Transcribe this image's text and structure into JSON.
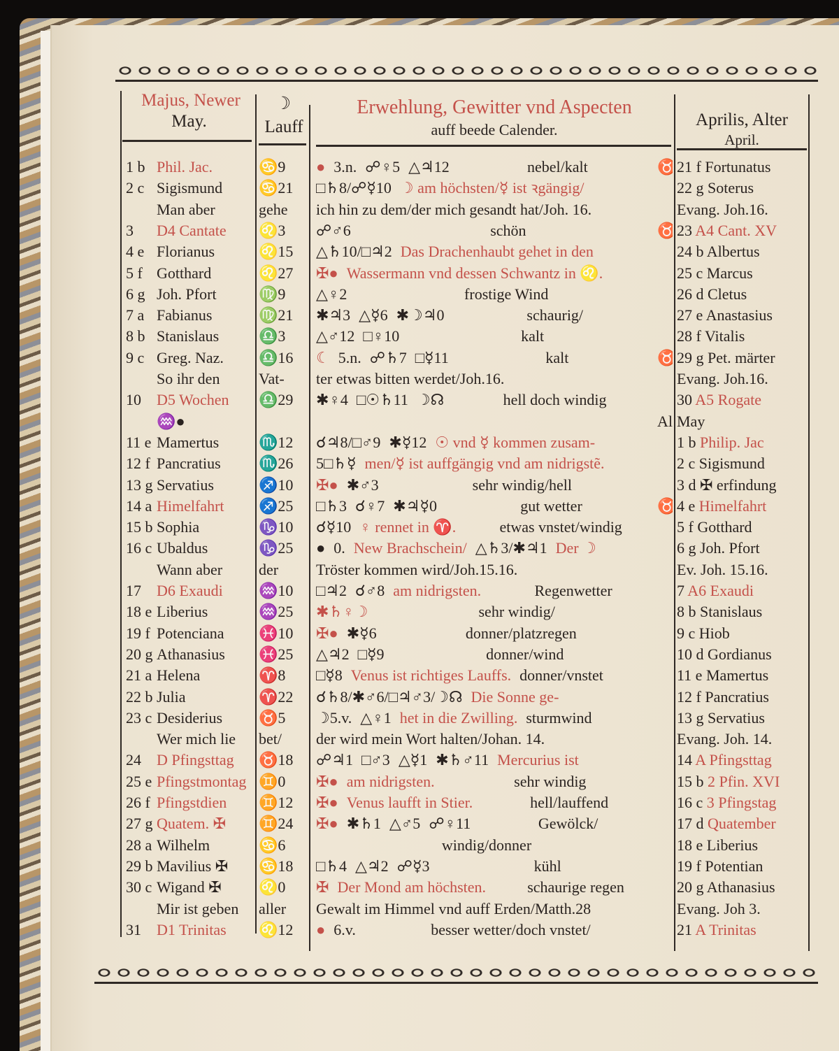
{
  "colors": {
    "red": "#c4514a",
    "ink": "#2a2320",
    "paper": "#efe6d5"
  },
  "header": {
    "left_title": "Majus, Newer",
    "left_sub": "May.",
    "lauf_symbol": "☽",
    "lauf_title": "Lauff",
    "mid_title": "Erwehlung, Gewitter vnd Aspecten",
    "mid_sub": "auff beede Calender.",
    "right_title": "Aprilis, Alter",
    "right_sub": "April."
  },
  "rows": [
    {
      "l": [
        "1 b",
        "Phil. Jac.",
        1
      ],
      "f": "♋9",
      "m": [
        [
          [
            "●",
            1
          ],
          [
            "3.n.",
            0
          ],
          [
            "☍♀5",
            0
          ],
          [
            "△♃12",
            0
          ]
        ],
        "nebel/kalt",
        "♉"
      ],
      "r": [
        "21 f",
        "Fortunatus",
        0
      ]
    },
    {
      "l": [
        "2 c",
        "Sigismund",
        0
      ],
      "f": "♋21",
      "m": [
        [
          [
            "□♄8/☍☿10",
            0
          ],
          [
            "☽ am höchsten/☿ ist ꝛgängig/",
            1
          ]
        ],
        "",
        ""
      ],
      "r": [
        "22 g",
        "Soterus",
        0
      ]
    },
    {
      "l": [
        "",
        "Man aber",
        0
      ],
      "f": "gehe",
      "m": [
        [
          [
            "ich hin zu dem/der mich gesandt hat/Joh. 16.",
            0
          ]
        ],
        "",
        ""
      ],
      "r": [
        "",
        "Evang. Joh.16.",
        0
      ]
    },
    {
      "l": [
        "3",
        "D4 Cantate",
        1
      ],
      "f": "♌3",
      "m": [
        [
          [
            "☍♂6",
            0
          ]
        ],
        "schön",
        "♉"
      ],
      "r": [
        "23",
        "A4 Cant. XV",
        1
      ]
    },
    {
      "l": [
        "4 e",
        "Florianus",
        0
      ],
      "f": "♌15",
      "m": [
        [
          [
            "△♄10/□♃2",
            0
          ],
          [
            "Das Drachenhaubt gehet in den",
            1
          ]
        ],
        "",
        ""
      ],
      "r": [
        "24 b",
        "Albertus",
        0
      ]
    },
    {
      "l": [
        "5 f",
        "Gotthard",
        0
      ],
      "f": "♌27",
      "m": [
        [
          [
            "✠●",
            1
          ],
          [
            "Wassermann vnd dessen Schwantz in ♌.",
            1
          ]
        ],
        "",
        ""
      ],
      "r": [
        "25 c",
        "Marcus",
        0
      ]
    },
    {
      "l": [
        "6 g",
        "Joh. Pfort",
        0
      ],
      "f": "♍9",
      "m": [
        [
          [
            "△♀2",
            0
          ]
        ],
        "frostige Wind",
        ""
      ],
      "r": [
        "26 d",
        "Cletus",
        0
      ]
    },
    {
      "l": [
        "7 a",
        "Fabianus",
        0
      ],
      "f": "♍21",
      "m": [
        [
          [
            "✱♃3",
            0
          ],
          [
            "△☿6",
            0
          ],
          [
            "✱☽♃0",
            0
          ]
        ],
        "schaurig/",
        ""
      ],
      "r": [
        "27 e",
        "Anastasius",
        0
      ]
    },
    {
      "l": [
        "8 b",
        "Stanislaus",
        0
      ],
      "f": "♎3",
      "m": [
        [
          [
            "△♂12",
            0
          ],
          [
            "□♀10",
            0
          ]
        ],
        "kalt",
        ""
      ],
      "r": [
        "28 f",
        "Vitalis",
        0
      ]
    },
    {
      "l": [
        "9 c",
        "Greg. Naz.",
        0
      ],
      "f": "♎16",
      "m": [
        [
          [
            "☾",
            1
          ],
          [
            "5.n.",
            0
          ],
          [
            "☍♄7",
            0
          ],
          [
            "□☿11",
            0
          ]
        ],
        "kalt",
        "♉"
      ],
      "r": [
        "29 g",
        "Pet. märter",
        0
      ]
    },
    {
      "l": [
        "",
        "So ihr den",
        0
      ],
      "f": "Vat-",
      "m": [
        [
          [
            "ter etwas bitten werdet/Joh.16.",
            0
          ]
        ],
        "",
        ""
      ],
      "r": [
        "",
        "Evang. Joh.16.",
        0
      ]
    },
    {
      "l": [
        "10",
        "D5 Wochen",
        1
      ],
      "f": "♎29",
      "m": [
        [
          [
            "✱♀4",
            0
          ],
          [
            "□☉♄11",
            0
          ],
          [
            "☽☊",
            0
          ]
        ],
        "hell doch windig",
        ""
      ],
      "r": [
        "30",
        "A5 Rogate",
        1
      ]
    },
    {
      "l": [
        "",
        "♒●",
        0
      ],
      "f": "",
      "m": [
        [],
        "",
        "Alter"
      ],
      "r": [
        "",
        "May",
        0
      ]
    },
    {
      "l": [
        "11 e",
        "Mamertus",
        0
      ],
      "f": "♏12",
      "m": [
        [
          [
            "☌♃8/□♂9",
            0
          ],
          [
            "✱☿12",
            0
          ],
          [
            "☉ vnd ☿ kommen zusam-",
            1
          ]
        ],
        "",
        ""
      ],
      "r": [
        "1 b",
        "Philip. Jac",
        1
      ]
    },
    {
      "l": [
        "12 f",
        "Pancratius",
        0
      ],
      "f": "♏26",
      "m": [
        [
          [
            "5□♄☿",
            0
          ],
          [
            "men/☿ ist auffgängig vnd am nidrigstẽ.",
            1
          ]
        ],
        "",
        ""
      ],
      "r": [
        "2 c",
        "Sigismund",
        0
      ]
    },
    {
      "l": [
        "13 g",
        "Servatius",
        0
      ],
      "f": "♐10",
      "m": [
        [
          [
            "✠●",
            1
          ],
          [
            "✱♂3",
            0
          ]
        ],
        "sehr windig/hell",
        ""
      ],
      "r": [
        "3 d",
        "✠ erfindung",
        0
      ]
    },
    {
      "l": [
        "14 a",
        "Himelfahrt",
        1
      ],
      "f": "♐25",
      "m": [
        [
          [
            "□♄3",
            0
          ],
          [
            "☌♀7",
            0
          ],
          [
            "✱♃☿0",
            0
          ]
        ],
        "gut wetter",
        "♉"
      ],
      "r": [
        "4 e",
        "Himelfahrt",
        1
      ]
    },
    {
      "l": [
        "15 b",
        "Sophia",
        0
      ],
      "f": "♑10",
      "m": [
        [
          [
            "☌☿10",
            0
          ],
          [
            "♀ rennet in ♈.",
            1
          ]
        ],
        "etwas vnstet/windig",
        ""
      ],
      "r": [
        "5 f",
        "Gotthard",
        0
      ]
    },
    {
      "l": [
        "16 c",
        "Ubaldus",
        0
      ],
      "f": "♑25",
      "m": [
        [
          [
            "●",
            0
          ],
          [
            "0.",
            0
          ],
          [
            "New Brachschein/",
            1
          ],
          [
            "△♄3/✱♃1",
            0
          ],
          [
            "Der ☽",
            1
          ]
        ],
        "",
        ""
      ],
      "r": [
        "6 g",
        "Joh. Pfort",
        0
      ]
    },
    {
      "l": [
        "",
        "Wann aber",
        0
      ],
      "f": "der",
      "m": [
        [
          [
            "Tröster kommen wird/Joh.15.16.",
            0
          ]
        ],
        "",
        ""
      ],
      "r": [
        "",
        "Ev. Joh. 15.16.",
        0
      ]
    },
    {
      "l": [
        "17",
        "D6 Exaudi",
        1
      ],
      "f": "♒10",
      "m": [
        [
          [
            "□♃2",
            0
          ],
          [
            "☌♂8",
            0
          ],
          [
            "am nidrigsten.",
            1
          ]
        ],
        "Regenwetter",
        ""
      ],
      "r": [
        "7",
        "A6 Exaudi",
        1
      ]
    },
    {
      "l": [
        "18 e",
        "Liberius",
        0
      ],
      "f": "♒25",
      "m": [
        [
          [
            "✱♄♀☽",
            1
          ]
        ],
        "sehr windig/",
        ""
      ],
      "r": [
        "8 b",
        "Stanislaus",
        0
      ]
    },
    {
      "l": [
        "19 f",
        "Potenciana",
        0
      ],
      "f": "♓10",
      "m": [
        [
          [
            "✠●",
            1
          ],
          [
            "✱☿6",
            0
          ]
        ],
        "donner/platzregen",
        ""
      ],
      "r": [
        "9 c",
        "Hiob",
        0
      ]
    },
    {
      "l": [
        "20 g",
        "Athanasius",
        0
      ],
      "f": "♓25",
      "m": [
        [
          [
            "△♃2",
            0
          ],
          [
            "□☿9",
            0
          ]
        ],
        "donner/wind",
        ""
      ],
      "r": [
        "10 d",
        "Gordianus",
        0
      ]
    },
    {
      "l": [
        "21 a",
        "Helena",
        0
      ],
      "f": "♈8",
      "m": [
        [
          [
            "□☿8",
            0
          ],
          [
            "Venus ist richtiges Lauffs.",
            1
          ],
          [
            "donner/vnstet",
            0
          ]
        ],
        "",
        ""
      ],
      "r": [
        "11 e",
        "Mamertus",
        0
      ]
    },
    {
      "l": [
        "22 b",
        "Julia",
        0
      ],
      "f": "♈22",
      "m": [
        [
          [
            "☌♄8/✱♂6/□♃♂3/☽☊",
            0
          ],
          [
            "Die Sonne ge-",
            1
          ]
        ],
        "",
        ""
      ],
      "r": [
        "12 f",
        "Pancratius",
        0
      ]
    },
    {
      "l": [
        "23 c",
        "Desiderius",
        0
      ],
      "f": "♉5",
      "m": [
        [
          [
            "☽5.v.",
            0
          ],
          [
            "△♀1",
            0
          ],
          [
            "het in die Zwilling.",
            1
          ],
          [
            "sturmwind",
            0
          ]
        ],
        "",
        ""
      ],
      "r": [
        "13 g",
        "Servatius",
        0
      ]
    },
    {
      "l": [
        "",
        "Wer mich lie",
        0
      ],
      "f": "bet/",
      "m": [
        [
          [
            "der wird mein Wort halten/Johan. 14.",
            0
          ]
        ],
        "",
        ""
      ],
      "r": [
        "",
        "Evang. Joh. 14.",
        0
      ]
    },
    {
      "l": [
        "24",
        "D Pfingsttag",
        1
      ],
      "f": "♉18",
      "m": [
        [
          [
            "☍♃1",
            0
          ],
          [
            "□♂3",
            0
          ],
          [
            "△☿1",
            0
          ],
          [
            "✱♄♂11",
            0
          ],
          [
            "Mercurius ist",
            1
          ]
        ],
        "",
        ""
      ],
      "r": [
        "14",
        "A Pfingsttag",
        1
      ]
    },
    {
      "l": [
        "25 e",
        "Pfingstmontag",
        1
      ],
      "f": "♊0",
      "m": [
        [
          [
            "✠●",
            1
          ],
          [
            "am nidrigsten.",
            1
          ]
        ],
        "sehr windig",
        ""
      ],
      "r": [
        "15 b",
        "2 Pfin. XVI",
        1
      ]
    },
    {
      "l": [
        "26 f",
        "Pfingstdien",
        1
      ],
      "f": "♊12",
      "m": [
        [
          [
            "✠●",
            1
          ],
          [
            "Venus laufft in Stier.",
            1
          ]
        ],
        "hell/lauffend",
        ""
      ],
      "r": [
        "16 c",
        "3 Pfingstag",
        1
      ]
    },
    {
      "l": [
        "27 g",
        "Quatem. ✠",
        1
      ],
      "f": "♊24",
      "m": [
        [
          [
            "✠●",
            1
          ],
          [
            "✱♄1",
            0
          ],
          [
            "△♂5",
            0
          ],
          [
            "☍♀11",
            0
          ]
        ],
        "Gewölck/",
        ""
      ],
      "r": [
        "17 d",
        "Quatember",
        1
      ]
    },
    {
      "l": [
        "28 a",
        "Wilhelm",
        0
      ],
      "f": "♋6",
      "m": [
        [],
        "windig/donner",
        ""
      ],
      "r": [
        "18 e",
        "Liberius",
        0
      ]
    },
    {
      "l": [
        "29 b",
        "Mavilius ✠",
        0
      ],
      "f": "♋18",
      "m": [
        [
          [
            "□♄4",
            0
          ],
          [
            "△♃2",
            0
          ],
          [
            "☍☿3",
            0
          ]
        ],
        "kühl",
        ""
      ],
      "r": [
        "19 f",
        "Potentian",
        0
      ]
    },
    {
      "l": [
        "30 c",
        "Wigand ✠",
        0
      ],
      "f": "♌0",
      "m": [
        [
          [
            "✠",
            1
          ],
          [
            "Der Mond am höchsten.",
            1
          ]
        ],
        "schaurige regen",
        ""
      ],
      "r": [
        "20 g",
        "Athanasius",
        0
      ]
    },
    {
      "l": [
        "",
        "Mir ist geben",
        0
      ],
      "f": "aller",
      "m": [
        [
          [
            "Gewalt im Himmel vnd auff Erden/Matth.28",
            0
          ]
        ],
        "",
        ""
      ],
      "r": [
        "",
        "Evang. Joh 3.",
        0
      ]
    },
    {
      "l": [
        "31",
        "D1 Trinitas",
        1
      ],
      "f": "♌12",
      "m": [
        [
          [
            "●",
            1
          ],
          [
            "6.v.",
            0
          ]
        ],
        "besser wetter/doch vnstet/",
        ""
      ],
      "r": [
        "21",
        "A Trinitas",
        1
      ]
    }
  ]
}
